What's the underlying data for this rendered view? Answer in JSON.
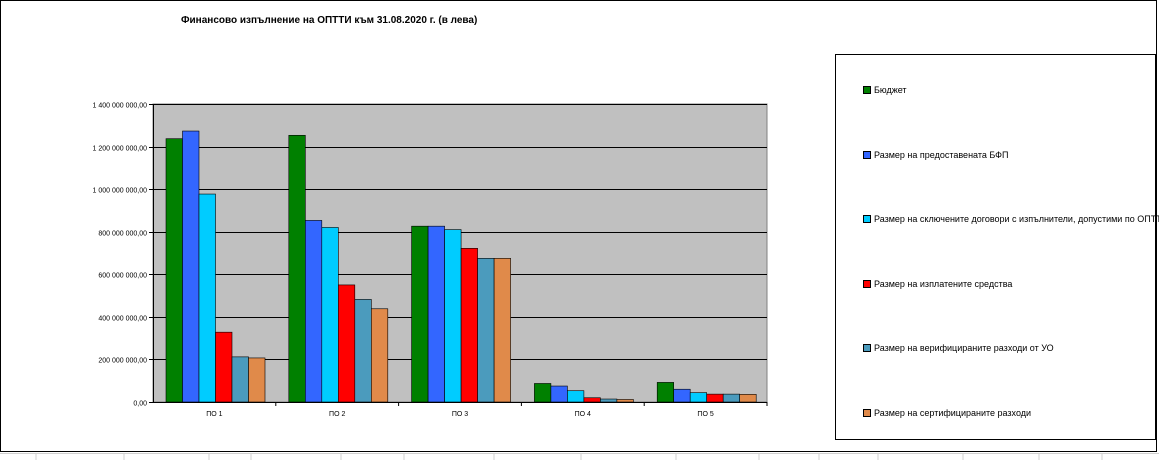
{
  "chart_data": {
    "type": "bar",
    "title": "Финансово изпълнение на ОПТТИ към 31.08.2020 г. (в лева)",
    "categories": [
      "ПО 1",
      "ПО 2",
      "ПО 3",
      "ПО 4",
      "ПО 5"
    ],
    "ylim": [
      0,
      1400000000
    ],
    "ytick_step": 200000000,
    "ytick_labels": [
      "0,00",
      "200 000 000,00",
      "400 000 000,00",
      "600 000 000,00",
      "800 000 000,00",
      "1 000 000 000,00",
      "1 200 000 000,00",
      "1 400 000 000,00"
    ],
    "grid": true,
    "legend_position": "right",
    "plot_background": "#c0c0c0",
    "series": [
      {
        "name": "Бюджет",
        "color": "#008000",
        "values": [
          1237000000,
          1253000000,
          826000000,
          87000000,
          92000000
        ]
      },
      {
        "name": "Размер на предоставената БФП",
        "color": "#3366ff",
        "values": [
          1273000000,
          853000000,
          826000000,
          75000000,
          60000000
        ]
      },
      {
        "name": "Размер на сключените договори с изпълнители, допустими по ОПТТИ",
        "color": "#00ccff",
        "values": [
          977000000,
          820000000,
          810000000,
          53000000,
          44000000
        ]
      },
      {
        "name": "Размер на изплатените средства",
        "color": "#ff0000",
        "values": [
          328000000,
          550000000,
          722000000,
          20000000,
          37000000
        ]
      },
      {
        "name": "Размер на верифицираните разходи от УО",
        "color": "#4b9bbd",
        "values": [
          212000000,
          482000000,
          675000000,
          14000000,
          37000000
        ]
      },
      {
        "name": "Размер на сертифицираните разходи",
        "color": "#e08a4a",
        "values": [
          207000000,
          438000000,
          675000000,
          12000000,
          36000000
        ]
      }
    ]
  }
}
